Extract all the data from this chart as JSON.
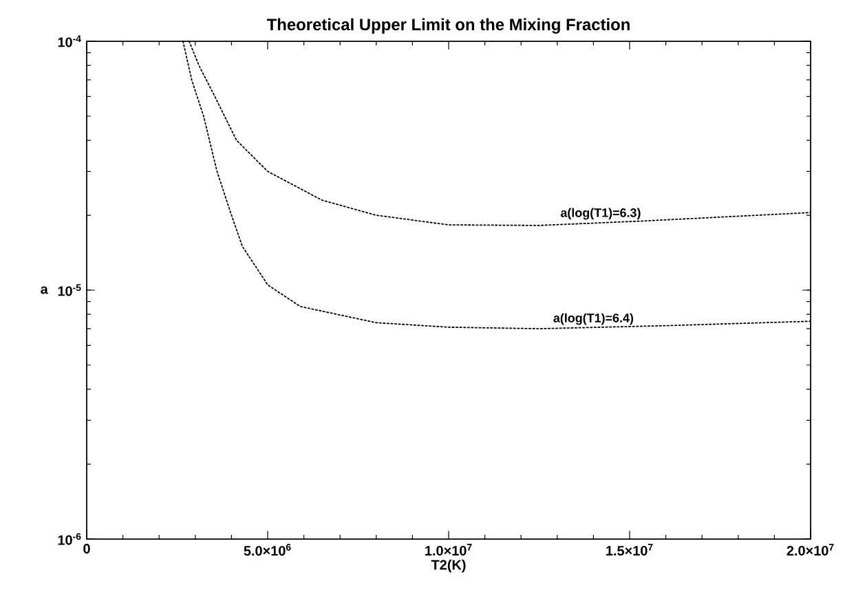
{
  "chart_data": {
    "type": "line",
    "title": "Theoretical Upper Limit on the Mixing Fraction",
    "xlabel": "T2(K)",
    "ylabel": "a",
    "log": "y",
    "grid": false,
    "marker": "none",
    "line_style": "dotted",
    "xlim": [
      0,
      20000000
    ],
    "ylim": [
      1e-06,
      0.0001
    ],
    "xticks": [
      0,
      {
        "value": 5000000,
        "label": "5.0×10$^{6}$"
      },
      {
        "value": 10000000,
        "label": "1.0×10$^{7}$"
      },
      {
        "value": 15000000,
        "label": "1.5×10$^{7}$"
      },
      {
        "value": 20000000,
        "label": "2.0×10$^{7}$"
      }
    ],
    "yticks": [
      {
        "value": 1e-06,
        "label": "10$^{-6}$"
      },
      {
        "value": 1e-05,
        "label": "10$^{-5}$"
      },
      {
        "value": 0.0001,
        "label": "10$^{-4}$"
      }
    ],
    "x": [
      2830000,
      3100000,
      3540000,
      4140000,
      5000000,
      6500000,
      8000000,
      10000000,
      12500000,
      15500000,
      20000000
    ],
    "series": [
      {
        "color": "#000000",
        "values": [
          0.0001,
          8e-05,
          6e-05,
          4e-05,
          3e-05,
          2.3e-05,
          2e-05,
          1.83e-05,
          1.82e-05,
          1.9e-05,
          2.05e-05
        ]
      },
      {
        "color": "#000000",
        "x": [
          2660000,
          2900000,
          3230000,
          3600000,
          4000000,
          4300000,
          5000000,
          5900000,
          8000000,
          10000000,
          12500000,
          16000000,
          20000000
        ],
        "values": [
          0.0001,
          7e-05,
          5e-05,
          3e-05,
          2e-05,
          1.5e-05,
          1.05e-05,
          8.6e-06,
          7.4e-06,
          7.1e-06,
          7e-06,
          7.2e-06,
          7.5e-06
        ]
      }
    ],
    "annotations": [
      {
        "text": "a(log(T1)=6.3)",
        "x": 14200000,
        "y": 1.88e-05
      },
      {
        "text": "a(log(T1)=6.4)",
        "x": 14000000,
        "y": 7.1e-06
      }
    ]
  }
}
